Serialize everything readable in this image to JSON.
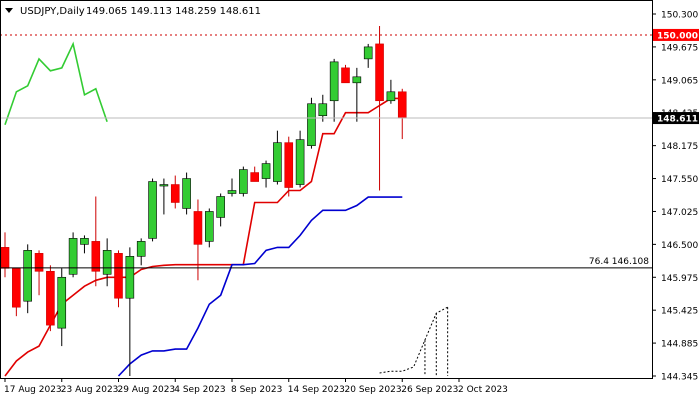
{
  "header": {
    "symbol": "USDJPY,Daily",
    "ohlc": "149.065 149.113 148.259 148.611"
  },
  "chart_data": {
    "type": "candlestick",
    "symbol": "USDJPY",
    "timeframe": "Daily",
    "ylim": [
      144.3,
      150.35
    ],
    "y_ticks": [
      "150.300",
      "149.675",
      "149.065",
      "148.435",
      "148.175",
      "147.550",
      "147.025",
      "146.500",
      "145.975",
      "145.425",
      "144.885",
      "144.345"
    ],
    "x_labels": [
      "17 Aug 2023",
      "23 Aug 2023",
      "29 Aug 2023",
      "4 Sep 2023",
      "8 Sep 2023",
      "14 Sep 2023",
      "20 Sep 2023",
      "26 Sep 2023",
      "2 Oct 2023"
    ],
    "x_label_slots": [
      0,
      5,
      10,
      15,
      20,
      25,
      30,
      35,
      40
    ],
    "price_tag": {
      "label": "148.611",
      "value": 148.611
    },
    "level_tag": {
      "label": "150.000",
      "value": 150.0
    },
    "fib_line": {
      "label": "76.4 146.108",
      "value": 146.108
    },
    "candles": [
      {
        "o": 146.45,
        "h": 146.7,
        "l": 145.95,
        "c": 146.1
      },
      {
        "o": 146.1,
        "h": 146.1,
        "l": 145.3,
        "c": 145.45
      },
      {
        "o": 145.55,
        "h": 146.5,
        "l": 145.35,
        "c": 146.4
      },
      {
        "o": 146.35,
        "h": 146.4,
        "l": 145.65,
        "c": 146.05
      },
      {
        "o": 146.05,
        "h": 146.15,
        "l": 145.05,
        "c": 145.15
      },
      {
        "o": 145.1,
        "h": 146.1,
        "l": 144.8,
        "c": 145.95
      },
      {
        "o": 146.0,
        "h": 146.7,
        "l": 145.95,
        "c": 146.6
      },
      {
        "o": 146.5,
        "h": 146.65,
        "l": 146.35,
        "c": 146.6
      },
      {
        "o": 146.55,
        "h": 147.3,
        "l": 145.8,
        "c": 146.05
      },
      {
        "o": 146.0,
        "h": 146.6,
        "l": 145.8,
        "c": 146.4
      },
      {
        "o": 146.35,
        "h": 146.4,
        "l": 145.45,
        "c": 145.6
      },
      {
        "o": 145.6,
        "h": 146.45,
        "l": 144.3,
        "c": 146.3
      },
      {
        "o": 146.3,
        "h": 146.6,
        "l": 146.15,
        "c": 146.55
      },
      {
        "o": 146.6,
        "h": 147.6,
        "l": 146.55,
        "c": 147.55
      },
      {
        "o": 147.5,
        "h": 147.6,
        "l": 147.0,
        "c": 147.5
      },
      {
        "o": 147.5,
        "h": 147.65,
        "l": 147.1,
        "c": 147.2
      },
      {
        "o": 147.1,
        "h": 147.7,
        "l": 147.0,
        "c": 147.6
      },
      {
        "o": 147.05,
        "h": 147.25,
        "l": 145.9,
        "c": 146.5
      },
      {
        "o": 146.55,
        "h": 147.1,
        "l": 146.45,
        "c": 147.05
      },
      {
        "o": 146.95,
        "h": 147.35,
        "l": 146.8,
        "c": 147.3
      },
      {
        "o": 147.35,
        "h": 147.6,
        "l": 147.3,
        "c": 147.4
      },
      {
        "o": 147.35,
        "h": 147.8,
        "l": 147.3,
        "c": 147.75
      },
      {
        "o": 147.7,
        "h": 147.8,
        "l": 147.55,
        "c": 147.55
      },
      {
        "o": 147.6,
        "h": 147.9,
        "l": 147.45,
        "c": 147.85
      },
      {
        "o": 147.55,
        "h": 148.4,
        "l": 147.5,
        "c": 148.2
      },
      {
        "o": 148.2,
        "h": 148.3,
        "l": 147.3,
        "c": 147.45
      },
      {
        "o": 147.5,
        "h": 148.4,
        "l": 147.45,
        "c": 148.25
      },
      {
        "o": 148.15,
        "h": 148.95,
        "l": 148.1,
        "c": 148.85
      },
      {
        "o": 148.65,
        "h": 149.0,
        "l": 148.55,
        "c": 148.85
      },
      {
        "o": 148.9,
        "h": 149.6,
        "l": 148.55,
        "c": 149.55
      },
      {
        "o": 149.45,
        "h": 149.5,
        "l": 149.2,
        "c": 149.2
      },
      {
        "o": 149.2,
        "h": 149.45,
        "l": 148.55,
        "c": 149.3
      },
      {
        "o": 149.6,
        "h": 149.85,
        "l": 149.45,
        "c": 149.8
      },
      {
        "o": 149.85,
        "h": 150.15,
        "l": 147.4,
        "c": 148.9
      },
      {
        "o": 148.9,
        "h": 149.25,
        "l": 148.85,
        "c": 149.05
      },
      {
        "o": 149.05,
        "h": 149.1,
        "l": 148.26,
        "c": 148.61
      }
    ],
    "candle_slots": [
      0,
      1,
      2,
      3,
      4,
      5,
      6,
      7,
      8,
      9,
      10,
      11,
      12,
      13,
      14,
      15,
      16,
      17,
      18,
      19,
      20,
      21,
      22,
      23,
      24,
      25,
      26,
      27,
      28,
      29,
      30,
      31,
      32,
      33,
      34,
      35
    ],
    "series": [
      {
        "name": "",
        "color": "#e00000",
        "start_slot": 0,
        "values": [
          144.3,
          144.55,
          144.7,
          144.8,
          145.15,
          145.5,
          145.65,
          145.8,
          145.9,
          145.95,
          145.95,
          145.95,
          146.08,
          146.13,
          146.15,
          146.16,
          146.16,
          146.16,
          146.16,
          146.16,
          146.16,
          146.16,
          147.2,
          147.2,
          147.2,
          147.4,
          147.4,
          147.55,
          148.35,
          148.35,
          148.7,
          148.7,
          148.7,
          148.82,
          148.94,
          148.94
        ]
      },
      {
        "name": "",
        "color": "#0000d0",
        "start_slot": 10,
        "values": [
          144.3,
          144.5,
          144.65,
          144.72,
          144.72,
          144.75,
          144.75,
          145.1,
          145.5,
          145.65,
          146.16,
          146.16,
          146.18,
          146.4,
          146.45,
          146.45,
          146.65,
          146.9,
          147.07,
          147.07,
          147.07,
          147.15,
          147.29,
          147.29,
          147.29,
          147.29
        ]
      },
      {
        "name": "",
        "color": "#33cc33",
        "start_slot": 0,
        "values": [
          148.5,
          149.05,
          149.15,
          149.6,
          149.4,
          149.45,
          149.85,
          149.0,
          149.1,
          148.55
        ]
      },
      {
        "name": "",
        "color": "#000000",
        "dashed": true,
        "start_slot": 33,
        "values": [
          144.35,
          144.38,
          144.38,
          144.45,
          144.9,
          145.35,
          145.45
        ]
      }
    ],
    "cloud_markers": [
      37,
      38,
      39
    ]
  }
}
